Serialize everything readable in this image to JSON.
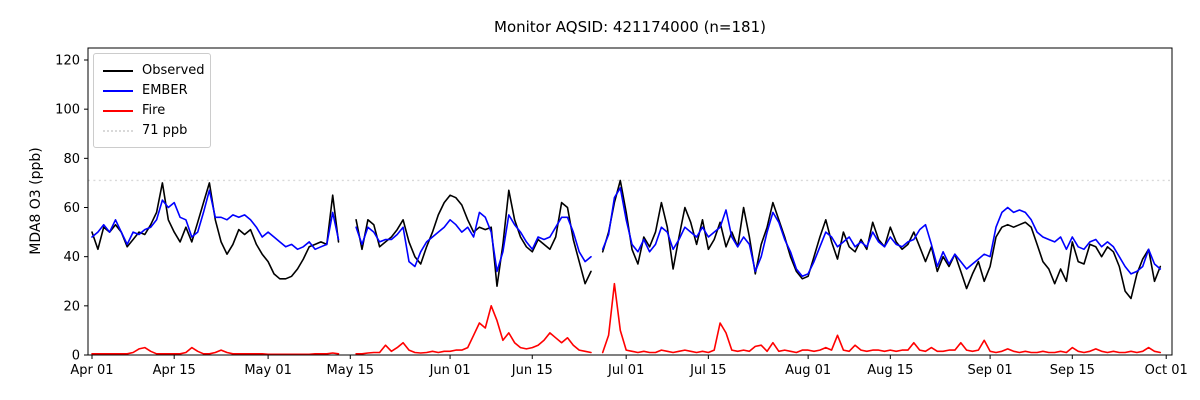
{
  "title": "Monitor AQSID: 421174000 (n=181)",
  "ylabel": "MDA8 O3 (ppb)",
  "chart_data": {
    "type": "line",
    "title": "Monitor AQSID: 421174000 (n=181)",
    "xlabel": "",
    "ylabel": "MDA8 O3 (ppb)",
    "x_unit": "daily values, day index 0 = Apr 01, last point = Sep 30",
    "ylim": [
      0,
      125
    ],
    "yticks": [
      0,
      20,
      40,
      60,
      80,
      100,
      120
    ],
    "xticks": [
      {
        "day": 0,
        "label": "Apr 01"
      },
      {
        "day": 14,
        "label": "Apr 15"
      },
      {
        "day": 30,
        "label": "May 01"
      },
      {
        "day": 44,
        "label": "May 15"
      },
      {
        "day": 61,
        "label": "Jun 01"
      },
      {
        "day": 75,
        "label": "Jun 15"
      },
      {
        "day": 91,
        "label": "Jul 01"
      },
      {
        "day": 105,
        "label": "Jul 15"
      },
      {
        "day": 122,
        "label": "Aug 01"
      },
      {
        "day": 136,
        "label": "Aug 15"
      },
      {
        "day": 153,
        "label": "Sep 01"
      },
      {
        "day": 167,
        "label": "Sep 15"
      },
      {
        "day": 183,
        "label": "Oct 01"
      }
    ],
    "grid": false,
    "legend_position": "upper-left",
    "threshold": {
      "value": 71,
      "label": "71 ppb",
      "color": "#d9d9d9",
      "style": "dotted"
    },
    "missing_days_note": "gaps (null) around May 14-15 and Jun 26",
    "series": [
      {
        "name": "Observed",
        "color": "#000000",
        "values": [
          50,
          43,
          52,
          50,
          53,
          50,
          44,
          47,
          50,
          49,
          53,
          58,
          70,
          55,
          50,
          46,
          52,
          46,
          54,
          62,
          70,
          55,
          46,
          41,
          45,
          51,
          49,
          51,
          45,
          41,
          38,
          33,
          31,
          31,
          32,
          35,
          39,
          44,
          45,
          46,
          45,
          65,
          46,
          null,
          null,
          55,
          43,
          55,
          53,
          44,
          46,
          48,
          51,
          55,
          46,
          40,
          37,
          44,
          50,
          57,
          62,
          65,
          64,
          61,
          55,
          50,
          52,
          51,
          52,
          28,
          45,
          67,
          55,
          48,
          44,
          42,
          47,
          45,
          43,
          48,
          62,
          60,
          47,
          38,
          29,
          34,
          null,
          42,
          50,
          62,
          71,
          58,
          43,
          37,
          48,
          44,
          50,
          62,
          52,
          35,
          48,
          60,
          54,
          45,
          55,
          43,
          47,
          54,
          44,
          50,
          44,
          60,
          48,
          33,
          45,
          52,
          62,
          55,
          48,
          40,
          34,
          31,
          32,
          40,
          48,
          55,
          46,
          39,
          50,
          44,
          42,
          47,
          43,
          54,
          47,
          44,
          52,
          46,
          43,
          45,
          50,
          44,
          38,
          44,
          34,
          40,
          36,
          41,
          34,
          27,
          33,
          38,
          30,
          36,
          48,
          52,
          53,
          52,
          53,
          54,
          52,
          45,
          38,
          35,
          29,
          35,
          30,
          46,
          38,
          37,
          45,
          44,
          40,
          44,
          42,
          36,
          26,
          23,
          33,
          39,
          43,
          30,
          36
        ]
      },
      {
        "name": "EMBER",
        "color": "#0000ff",
        "values": [
          48,
          50,
          53,
          50,
          55,
          50,
          45,
          50,
          49,
          51,
          52,
          55,
          63,
          60,
          62,
          56,
          55,
          48,
          50,
          58,
          67,
          56,
          56,
          55,
          57,
          56,
          57,
          55,
          52,
          48,
          50,
          48,
          46,
          44,
          45,
          43,
          44,
          46,
          43,
          44,
          45,
          58,
          47,
          null,
          null,
          52,
          45,
          52,
          50,
          46,
          47,
          47,
          49,
          52,
          38,
          36,
          42,
          46,
          48,
          50,
          52,
          55,
          53,
          50,
          52,
          48,
          58,
          56,
          50,
          34,
          42,
          57,
          53,
          50,
          46,
          43,
          48,
          47,
          48,
          52,
          56,
          56,
          50,
          42,
          38,
          40,
          null,
          43,
          49,
          64,
          68,
          55,
          45,
          42,
          47,
          42,
          45,
          52,
          50,
          43,
          47,
          52,
          50,
          48,
          52,
          48,
          50,
          52,
          59,
          48,
          44,
          48,
          45,
          34,
          40,
          50,
          58,
          54,
          47,
          42,
          35,
          32,
          33,
          38,
          44,
          50,
          48,
          44,
          46,
          48,
          44,
          46,
          44,
          50,
          46,
          44,
          48,
          45,
          44,
          46,
          47,
          51,
          53,
          45,
          36,
          42,
          37,
          41,
          38,
          35,
          37,
          39,
          41,
          40,
          52,
          58,
          60,
          58,
          59,
          58,
          55,
          50,
          48,
          47,
          46,
          48,
          43,
          48,
          44,
          43,
          46,
          47,
          44,
          46,
          44,
          40,
          36,
          33,
          34,
          36,
          43,
          37,
          35
        ]
      },
      {
        "name": "Fire",
        "color": "#ff0000",
        "values": [
          0.5,
          0.5,
          0.5,
          0.5,
          0.5,
          0.5,
          0.5,
          1,
          2.5,
          3,
          1.5,
          0.5,
          0.5,
          0.5,
          0.5,
          0.5,
          1,
          3,
          1.5,
          0.5,
          0.5,
          1,
          2,
          1,
          0.5,
          0.5,
          0.5,
          0.5,
          0.5,
          0.5,
          0.3,
          0.3,
          0.3,
          0.3,
          0.3,
          0.3,
          0.3,
          0.3,
          0.5,
          0.5,
          0.5,
          0.8,
          0.5,
          null,
          null,
          0.5,
          0.5,
          0.8,
          1,
          1,
          4,
          1.5,
          3,
          5,
          2,
          1,
          0.8,
          1,
          1.5,
          1,
          1.5,
          1.5,
          2,
          2,
          3,
          8,
          13,
          11,
          20,
          14,
          6,
          9,
          5,
          3,
          2.5,
          3,
          4,
          6,
          9,
          7,
          5,
          7,
          4,
          2,
          1.5,
          1,
          null,
          1,
          8,
          29,
          10,
          2,
          1.5,
          1,
          1.5,
          1,
          1,
          2,
          1.5,
          1,
          1.5,
          2,
          1.5,
          1,
          1.5,
          1,
          2,
          13,
          9,
          2,
          1.5,
          2,
          1.5,
          3.5,
          4,
          1.5,
          5,
          1.5,
          2,
          1.5,
          1,
          2,
          2,
          1.5,
          2,
          3,
          2,
          8,
          2,
          1.5,
          4,
          2,
          1.5,
          2,
          2,
          1.5,
          2,
          1.5,
          2,
          2,
          5,
          2,
          1.5,
          3,
          1.5,
          1.5,
          2,
          2,
          5,
          2,
          1.5,
          2,
          6,
          1.5,
          1,
          1.5,
          2.5,
          1.5,
          1,
          1.5,
          1,
          1,
          1.5,
          1,
          1,
          1.5,
          1,
          3,
          1.5,
          1,
          1.5,
          2.5,
          1.5,
          1,
          1.5,
          1,
          1,
          1.5,
          1,
          1.5,
          3,
          1.5,
          1
        ]
      }
    ],
    "legend_entries": [
      "Observed",
      "EMBER",
      "Fire",
      "71 ppb"
    ]
  }
}
